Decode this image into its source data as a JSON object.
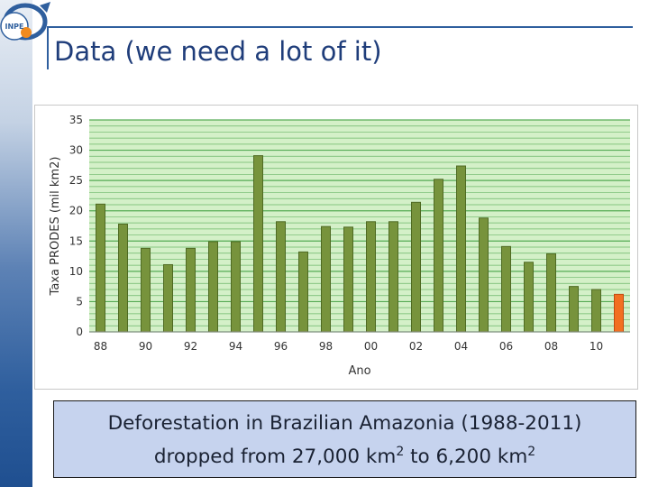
{
  "logo": {
    "text": "INPE",
    "icon": "inpe-logo-icon"
  },
  "title": "Data (we need a lot of it)",
  "colors": {
    "bar": "#77933c",
    "bar_highlight": "#f26f21",
    "plot_bg": "#d4f0c8",
    "grid": "#48a448",
    "title": "#1f3d7a",
    "caption_bg": "#c6d3ee"
  },
  "caption": {
    "line1": "Deforestation in Brazilian Amazonia (1988-2011)",
    "line2_a": "dropped from 27,000 km",
    "sup1": "2",
    "line2_b": " to 6,200 km",
    "sup2": "2"
  },
  "chart_data": {
    "type": "bar",
    "title": "",
    "xlabel": "Ano",
    "ylabel": "Taxa PRODES (mil km2)",
    "ylim": [
      0,
      35
    ],
    "yticks": [
      "0",
      "5",
      "10",
      "15",
      "20",
      "25",
      "30",
      "35"
    ],
    "grid": true,
    "xticklabels": [
      "88",
      "90",
      "92",
      "94",
      "96",
      "98",
      "00",
      "02",
      "04",
      "06",
      "08",
      "10"
    ],
    "categories": [
      "1988",
      "1989",
      "1990",
      "1991",
      "1992",
      "1993",
      "1994",
      "1995",
      "1996",
      "1997",
      "1998",
      "1999",
      "2000",
      "2001",
      "2002",
      "2003",
      "2004",
      "2005",
      "2006",
      "2007",
      "2008",
      "2009",
      "2010",
      "2011"
    ],
    "values": [
      21.1,
      17.8,
      13.8,
      11.1,
      13.8,
      14.9,
      14.9,
      29.1,
      18.2,
      13.2,
      17.4,
      17.3,
      18.2,
      18.2,
      21.4,
      25.2,
      27.4,
      18.8,
      14.1,
      11.5,
      12.9,
      7.5,
      7.0,
      6.2
    ],
    "highlight_index": 23
  }
}
